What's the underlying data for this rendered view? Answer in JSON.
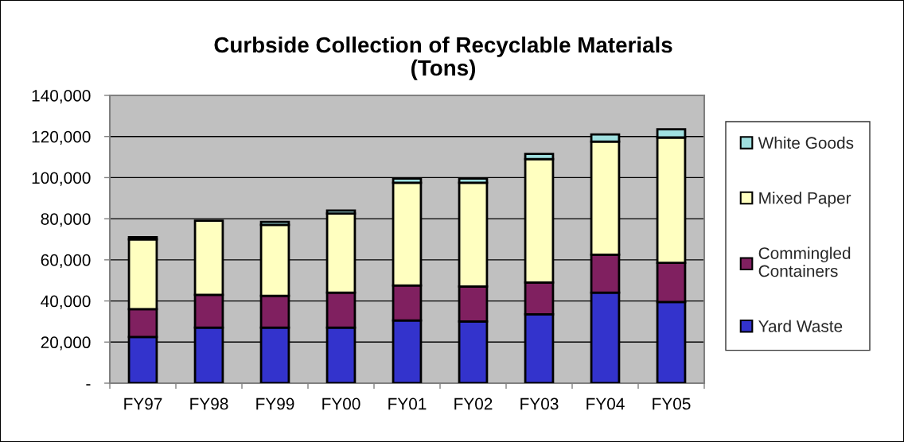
{
  "chart_data": {
    "type": "bar",
    "title": "Curbside Collection of Recyclable Materials\n(Tons)",
    "categories": [
      "FY97",
      "FY98",
      "FY99",
      "FY00",
      "FY01",
      "FY02",
      "FY03",
      "FY04",
      "FY05"
    ],
    "stacked": true,
    "series": [
      {
        "name": "Yard Waste",
        "color": "#3333cc",
        "values": [
          22500,
          27000,
          27000,
          27000,
          30500,
          30000,
          33500,
          44000,
          39500
        ]
      },
      {
        "name": "Commingled\nContainers",
        "color": "#802060",
        "values": [
          13500,
          16000,
          15500,
          17000,
          17000,
          17000,
          15500,
          18500,
          19000
        ]
      },
      {
        "name": "Mixed Paper",
        "color": "#ffffc0",
        "values": [
          34000,
          36000,
          34500,
          38500,
          50000,
          50500,
          60000,
          55000,
          61000
        ]
      },
      {
        "name": "White Goods",
        "color": "#a0e0e0",
        "values": [
          1000,
          null,
          1500,
          1500,
          2000,
          2000,
          2500,
          3500,
          4000
        ]
      }
    ],
    "ylim": [
      0,
      140000
    ],
    "yticks": [
      {
        "value": 0,
        "label": "-"
      },
      {
        "value": 20000,
        "label": "20,000"
      },
      {
        "value": 40000,
        "label": "40,000"
      },
      {
        "value": 60000,
        "label": "60,000"
      },
      {
        "value": 80000,
        "label": "80,000"
      },
      {
        "value": 100000,
        "label": "100,000"
      },
      {
        "value": 120000,
        "label": "120,000"
      },
      {
        "value": 140000,
        "label": "140,000"
      }
    ],
    "grid": "y",
    "legend": "right"
  }
}
